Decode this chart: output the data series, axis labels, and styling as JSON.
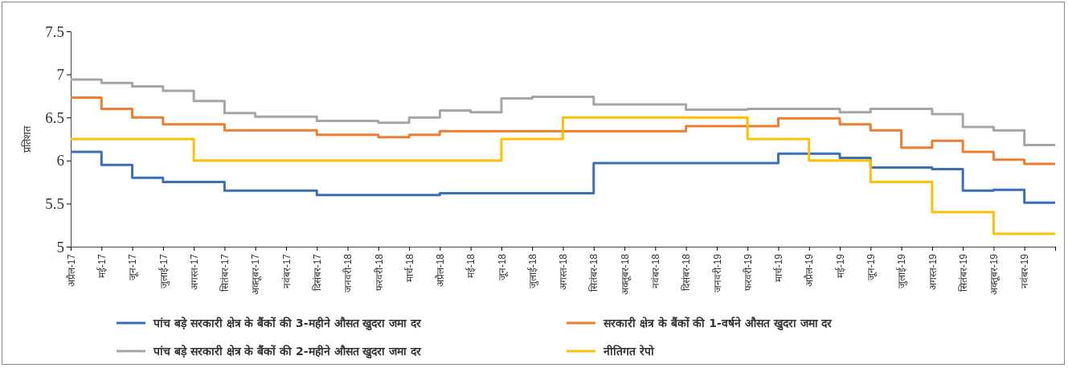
{
  "chart_data": {
    "type": "step",
    "ylabel": "प्रतिशत",
    "legend": "bottom",
    "ylim": [
      5,
      7.5
    ],
    "yticks": [
      5,
      5.5,
      6,
      6.5,
      7,
      7.5
    ],
    "categories": [
      "अप्रैल-17",
      "मई-17",
      "जून-17",
      "जुलाई-17",
      "अगस्त-17",
      "सितंबर-17",
      "अक्तूबर-17",
      "नवंबर-17",
      "दिसंबर-17",
      "जनवरी-18",
      "फरवरी-18",
      "मार्च-18",
      "अप्रैल-18",
      "मई-18",
      "जून-18",
      "जुलाई-18",
      "अगस्त-18",
      "सितंबर-18",
      "अक्तूबर-18",
      "नवंबर-18",
      "दिसंबर-18",
      "जनवरी-19",
      "फरवरी-19",
      "मार्च-19",
      "अप्रैल-19",
      "मई-19",
      "जून-19",
      "जुलाई-19",
      "अगस्त-19",
      "सितंबर-19",
      "अक्तूबर-19",
      "नवंबर-19",
      null
    ],
    "series": [
      {
        "name": "पांच बड़े सरकारी क्षेत्र के बैंकों की 3-महीने औसत खुदरा जमा दर",
        "color": "#3a6fba",
        "values": [
          6.1,
          5.95,
          5.8,
          5.75,
          5.75,
          5.65,
          5.65,
          5.65,
          5.6,
          5.6,
          5.6,
          5.6,
          5.62,
          5.62,
          5.62,
          5.62,
          5.62,
          5.97,
          5.97,
          5.97,
          5.97,
          5.97,
          5.97,
          6.08,
          6.08,
          6.03,
          5.92,
          5.92,
          5.9,
          5.65,
          5.66,
          5.51,
          5.51
        ]
      },
      {
        "name": "सरकारी क्षेत्र के बैंकों की 1-वर्षने औसत खुदरा जमा दर",
        "color": "#ed7d31",
        "values": [
          6.73,
          6.6,
          6.5,
          6.42,
          6.42,
          6.35,
          6.35,
          6.35,
          6.3,
          6.3,
          6.27,
          6.3,
          6.34,
          6.34,
          6.34,
          6.34,
          6.34,
          6.34,
          6.34,
          6.34,
          6.4,
          6.4,
          6.4,
          6.49,
          6.49,
          6.42,
          6.35,
          6.15,
          6.23,
          6.1,
          6.01,
          5.96,
          5.96
        ]
      },
      {
        "name": "पांच बड़े सरकारी क्षेत्र के बैंकों की 2-महीने औसत खुदरा जमा दर",
        "color": "#a5a5a5",
        "values": [
          6.94,
          6.9,
          6.86,
          6.81,
          6.69,
          6.55,
          6.51,
          6.51,
          6.46,
          6.46,
          6.44,
          6.5,
          6.58,
          6.56,
          6.72,
          6.74,
          6.74,
          6.65,
          6.65,
          6.65,
          6.59,
          6.59,
          6.6,
          6.6,
          6.6,
          6.56,
          6.6,
          6.6,
          6.54,
          6.39,
          6.35,
          6.18,
          6.18
        ]
      },
      {
        "name": "नीतिगत रेपो",
        "color": "#ffc000",
        "values": [
          6.25,
          6.25,
          6.25,
          6.25,
          6.0,
          6.0,
          6.0,
          6.0,
          6.0,
          6.0,
          6.0,
          6.0,
          6.0,
          6.0,
          6.25,
          6.25,
          6.5,
          6.5,
          6.5,
          6.5,
          6.5,
          6.5,
          6.25,
          6.25,
          6.0,
          6.0,
          5.75,
          5.75,
          5.4,
          5.4,
          5.15,
          5.15,
          5.15
        ]
      }
    ]
  }
}
